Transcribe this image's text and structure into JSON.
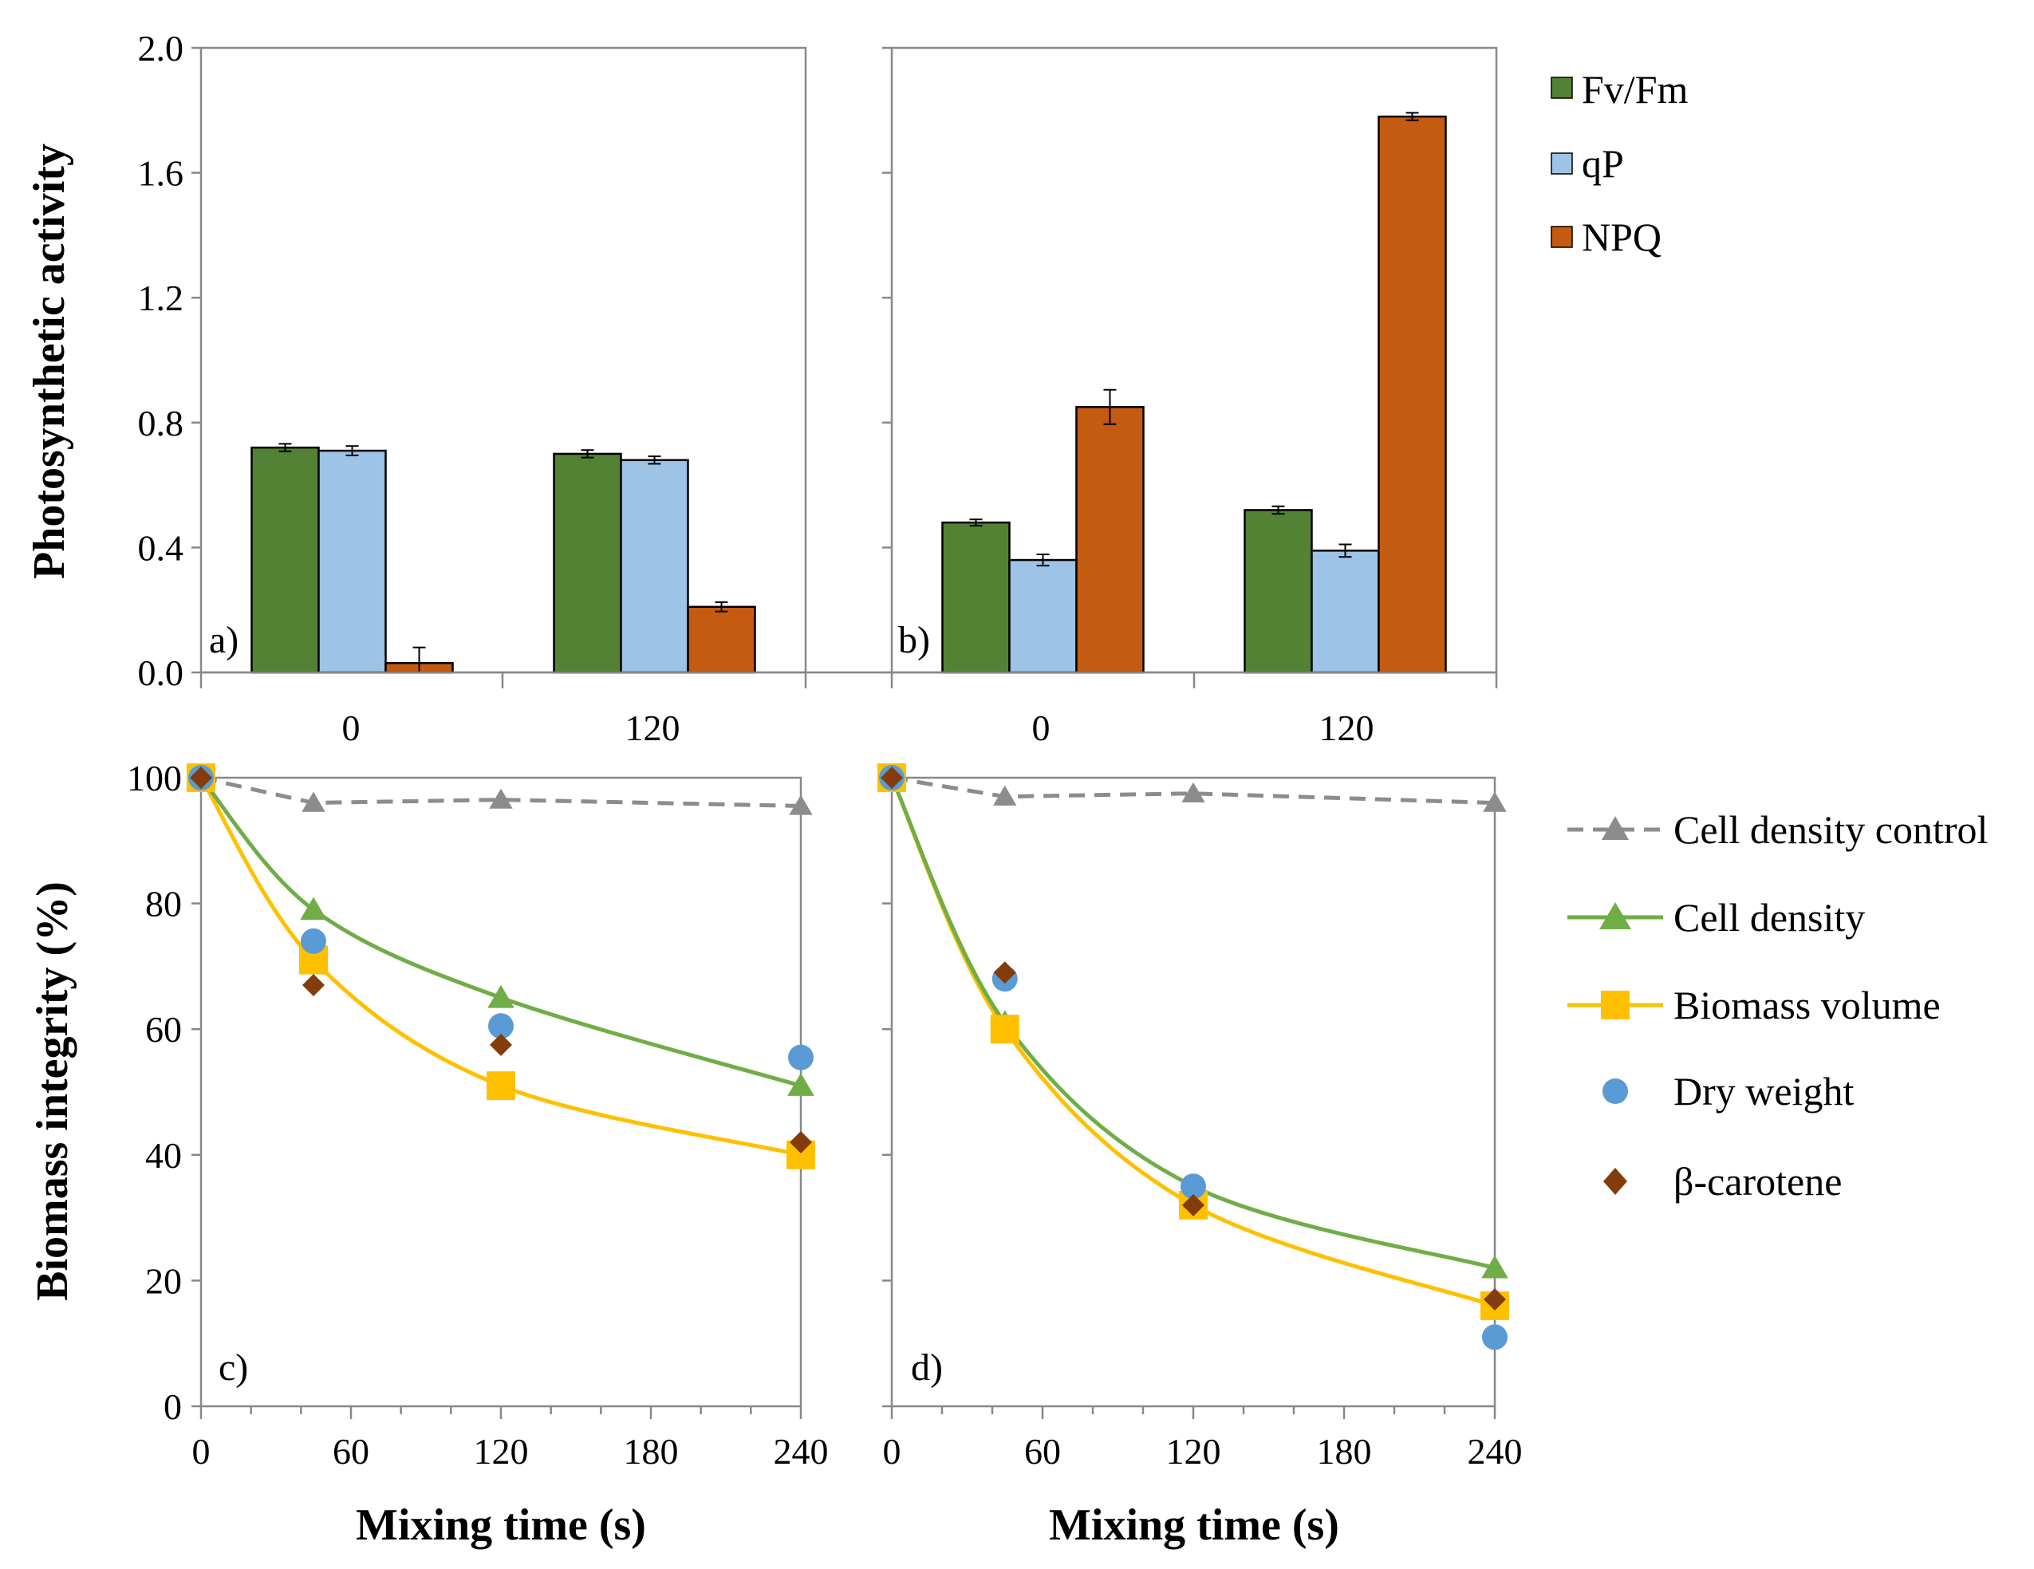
{
  "colors": {
    "fvfm": "#548235",
    "qp": "#9DC3E6",
    "npq": "#C55A11",
    "control": "#8C8C8C",
    "cell_density": "#70AD47",
    "biomass_volume": "#FFC000",
    "dry_weight": "#5B9BD5",
    "beta_carotene": "#843C0C"
  },
  "chart_data": [
    {
      "panel": "a)",
      "type": "bar",
      "categories": [
        "0",
        "120"
      ],
      "ylabel": "Photosynthetic activity",
      "ylim": [
        0,
        2.0
      ],
      "yticks": [
        "0.0",
        "0.4",
        "0.8",
        "1.2",
        "1.6",
        "2.0"
      ],
      "series": [
        {
          "name": "Fv/Fm",
          "values": [
            0.72,
            0.7
          ],
          "errors": [
            0.012,
            0.012
          ]
        },
        {
          "name": "qP",
          "values": [
            0.71,
            0.68
          ],
          "errors": [
            0.015,
            0.012
          ]
        },
        {
          "name": "NPQ",
          "values": [
            0.03,
            0.21
          ],
          "errors": [
            0.05,
            0.015
          ]
        }
      ]
    },
    {
      "panel": "b)",
      "type": "bar",
      "categories": [
        "0",
        "120"
      ],
      "ylim": [
        0,
        2.0
      ],
      "series": [
        {
          "name": "Fv/Fm",
          "values": [
            0.48,
            0.52
          ],
          "errors": [
            0.01,
            0.012
          ]
        },
        {
          "name": "qP",
          "values": [
            0.36,
            0.39
          ],
          "errors": [
            0.018,
            0.02
          ]
        },
        {
          "name": "NPQ",
          "values": [
            0.85,
            1.78
          ],
          "errors": [
            0.055,
            0.012
          ]
        }
      ],
      "legend": [
        "Fv/Fm",
        "qP",
        "NPQ"
      ]
    },
    {
      "panel": "c)",
      "type": "scatter",
      "xlabel": "Mixing time (s)",
      "ylabel": "Biomass integrity (%)",
      "xlim": [
        0,
        240
      ],
      "ylim": [
        0,
        100
      ],
      "xticks": [
        "0",
        "60",
        "120",
        "180",
        "240"
      ],
      "yticks": [
        "0",
        "20",
        "40",
        "60",
        "80",
        "100"
      ],
      "series": [
        {
          "name": "Cell density control",
          "x": [
            0,
            45,
            120,
            240
          ],
          "y": [
            100,
            96,
            96.5,
            95.5
          ],
          "style": "dashed-triangle"
        },
        {
          "name": "Cell density",
          "x": [
            0,
            45,
            120,
            240
          ],
          "y": [
            100,
            79,
            65,
            51
          ],
          "style": "line-triangle"
        },
        {
          "name": "Biomass volume",
          "x": [
            0,
            45,
            120,
            240
          ],
          "y": [
            100,
            71,
            51,
            40
          ],
          "style": "line-square"
        },
        {
          "name": "Dry weight",
          "x": [
            0,
            45,
            120,
            240
          ],
          "y": [
            100,
            74,
            60.5,
            55.5
          ],
          "style": "circle"
        },
        {
          "name": "β-carotene",
          "x": [
            0,
            45,
            120,
            240
          ],
          "y": [
            100,
            67,
            57.5,
            42
          ],
          "style": "diamond"
        }
      ]
    },
    {
      "panel": "d)",
      "type": "scatter",
      "xlabel": "Mixing time (s)",
      "xlim": [
        0,
        240
      ],
      "ylim": [
        0,
        100
      ],
      "xticks": [
        "0",
        "60",
        "120",
        "180",
        "240"
      ],
      "series": [
        {
          "name": "Cell density control",
          "x": [
            0,
            45,
            120,
            240
          ],
          "y": [
            100,
            97,
            97.5,
            96
          ],
          "style": "dashed-triangle"
        },
        {
          "name": "Cell density",
          "x": [
            0,
            45,
            120,
            240
          ],
          "y": [
            100,
            61,
            35,
            22
          ],
          "style": "line-triangle"
        },
        {
          "name": "Biomass volume",
          "x": [
            0,
            45,
            120,
            240
          ],
          "y": [
            100,
            60,
            32,
            16
          ],
          "style": "line-square"
        },
        {
          "name": "Dry weight",
          "x": [
            0,
            45,
            120,
            240
          ],
          "y": [
            100,
            68,
            35,
            11
          ],
          "style": "circle"
        },
        {
          "name": "β-carotene",
          "x": [
            0,
            45,
            120,
            240
          ],
          "y": [
            100,
            69,
            32,
            17
          ],
          "style": "diamond"
        }
      ],
      "legend": [
        "Cell density control",
        "Cell density",
        "Biomass volume",
        "Dry weight",
        "β-carotene"
      ]
    }
  ]
}
